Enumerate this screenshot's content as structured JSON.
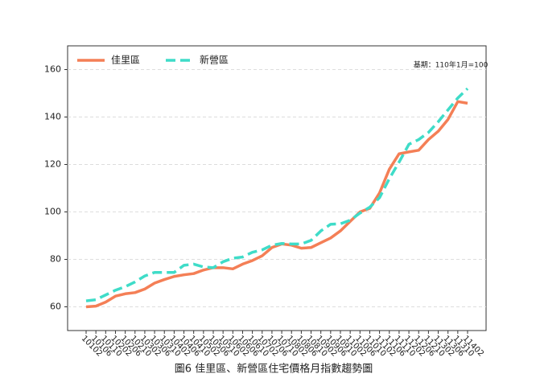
{
  "chart_data": {
    "type": "line",
    "title": "圖6 佳里區、新營區住宅價格月指數趨勢圖",
    "annotation": "基期：110年1月=100",
    "categories": [
      "10102",
      "10106",
      "10110",
      "10202",
      "10206",
      "10210",
      "10302",
      "10306",
      "10310",
      "10402",
      "10406",
      "10410",
      "10502",
      "10506",
      "10510",
      "10602",
      "10606",
      "10610",
      "10702",
      "10706",
      "10710",
      "10802",
      "10806",
      "10810",
      "10902",
      "10906",
      "10910",
      "11002",
      "11006",
      "11010",
      "11102",
      "11106",
      "11110",
      "11202",
      "11206",
      "11210",
      "11302",
      "11306",
      "11310",
      "11402"
    ],
    "series": [
      {
        "name": "佳里區",
        "color": "#f47f56",
        "dash": "solid",
        "values": [
          60,
          60.3,
          62,
          64.5,
          65.5,
          66,
          67.5,
          70,
          71.5,
          72.8,
          73.5,
          74,
          75.5,
          76.5,
          76.5,
          76,
          78,
          79.5,
          81.5,
          85,
          86.5,
          86,
          84.7,
          85,
          87,
          89,
          92,
          96,
          100,
          101.5,
          108,
          118,
          124.5,
          125.3,
          126,
          130.5,
          134,
          139,
          146.5,
          145.8
        ]
      },
      {
        "name": "新營區",
        "color": "#3fdcc8",
        "dash": "dashed",
        "values": [
          62.5,
          63,
          65,
          67,
          68.5,
          70.5,
          73,
          74.5,
          74.5,
          74.5,
          77.5,
          78,
          76.8,
          76.5,
          79,
          80.5,
          81,
          83,
          84,
          86,
          86.7,
          86.5,
          86.5,
          88,
          92,
          94.8,
          95,
          96.5,
          99.5,
          102,
          106,
          114,
          121,
          128.5,
          130.5,
          133.5,
          138,
          143,
          148,
          152
        ]
      }
    ],
    "ylim": [
      50,
      170
    ],
    "yticks": [
      60,
      80,
      100,
      120,
      140,
      160
    ],
    "grid": true,
    "legend": "upper left"
  }
}
